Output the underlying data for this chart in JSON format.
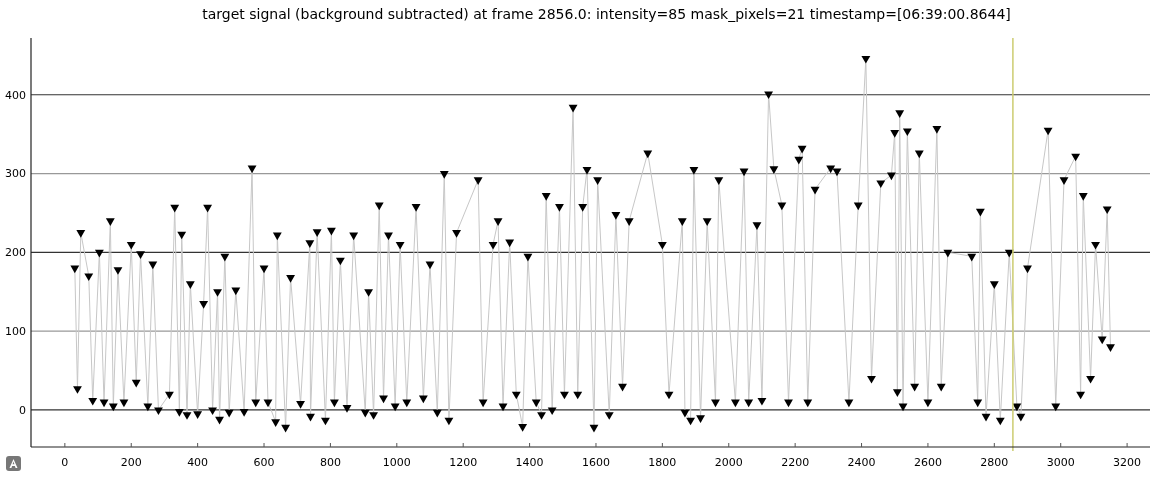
{
  "chart_data": {
    "type": "line",
    "title": "target signal (background subtracted) at frame 2856.0: intensity=85 mask_pixels=21 timestamp=[06:39:00.8644]",
    "x": [
      30,
      38,
      48,
      72,
      84,
      104,
      118,
      137,
      146,
      160,
      178,
      200,
      215,
      228,
      250,
      265,
      282,
      315,
      331,
      345,
      352,
      368,
      378,
      400,
      418,
      430,
      445,
      460,
      466,
      482,
      495,
      515,
      540,
      564,
      575,
      600,
      612,
      635,
      640,
      665,
      680,
      710,
      738,
      740,
      760,
      785,
      803,
      812,
      830,
      850,
      870,
      905,
      915,
      930,
      947,
      960,
      975,
      995,
      1010,
      1030,
      1058,
      1080,
      1100,
      1122,
      1143,
      1157,
      1180,
      1245,
      1260,
      1290,
      1305,
      1320,
      1340,
      1360,
      1379,
      1395,
      1420,
      1436,
      1450,
      1468,
      1490,
      1505,
      1531,
      1545,
      1560,
      1573,
      1594,
      1605,
      1640,
      1660,
      1680,
      1700,
      1756,
      1800,
      1820,
      1860,
      1868,
      1885,
      1895,
      1915,
      1935,
      1960,
      1970,
      2020,
      2046,
      2060,
      2085,
      2100,
      2120,
      2136,
      2160,
      2180,
      2211,
      2221,
      2238,
      2260,
      2307,
      2326,
      2362,
      2390,
      2413,
      2430,
      2458,
      2490,
      2500,
      2508,
      2515,
      2525,
      2538,
      2560,
      2574,
      2600,
      2627,
      2640,
      2660,
      2732,
      2750,
      2758,
      2775,
      2800,
      2818,
      2845,
      2868,
      2880,
      2900,
      2962,
      2985,
      3010,
      3045,
      3060,
      3068,
      3090,
      3105,
      3125,
      3140,
      3150
    ],
    "series": [
      {
        "color": "#000000",
        "values": [
          180,
          27,
          225,
          170,
          12,
          200,
          10,
          240,
          5,
          178,
          10,
          210,
          35,
          198,
          5,
          185,
          0,
          20,
          257,
          -2,
          223,
          -6,
          160,
          -5,
          135,
          257,
          0,
          150,
          -12,
          195,
          -3,
          152,
          -2,
          307,
          10,
          180,
          10,
          -15,
          222,
          -22,
          168,
          8,
          212,
          -8,
          226,
          -13,
          228,
          10,
          190,
          3,
          222,
          -3,
          150,
          -6,
          260,
          15,
          222,
          5,
          210,
          10,
          258,
          15,
          185,
          -3,
          300,
          -13,
          225,
          292,
          10,
          210,
          240,
          5,
          213,
          20,
          -21,
          195,
          10,
          -6,
          272,
          0,
          258,
          20,
          384,
          20,
          258,
          305,
          -22,
          292,
          -6,
          248,
          30,
          240,
          326,
          210,
          20,
          240,
          -3,
          -13,
          305,
          -10,
          240,
          10,
          292,
          10,
          303,
          10,
          235,
          12,
          401,
          306,
          260,
          10,
          318,
          332,
          10,
          280,
          307,
          303,
          10,
          260,
          446,
          40,
          288,
          298,
          352,
          23,
          377,
          5,
          354,
          30,
          326,
          10,
          357,
          30,
          200,
          195,
          10,
          252,
          -8,
          160,
          -13,
          200,
          5,
          -8,
          180,
          355,
          5,
          292,
          322,
          20,
          272,
          40,
          210,
          90,
          255,
          80
        ]
      }
    ],
    "xlim": [
      -102,
      3269
    ],
    "ylim": [
      -47,
      472
    ],
    "xticks": [
      0,
      200,
      400,
      600,
      800,
      1000,
      1200,
      1400,
      1600,
      1800,
      2000,
      2200,
      2400,
      2600,
      2800,
      3000,
      3200
    ],
    "yticks": [
      0,
      100,
      200,
      300,
      400
    ],
    "grid": "y",
    "marker": "triangle",
    "ref_lines": [
      {
        "axis": "x",
        "value": 2856,
        "color": "#cccc70"
      }
    ]
  }
}
